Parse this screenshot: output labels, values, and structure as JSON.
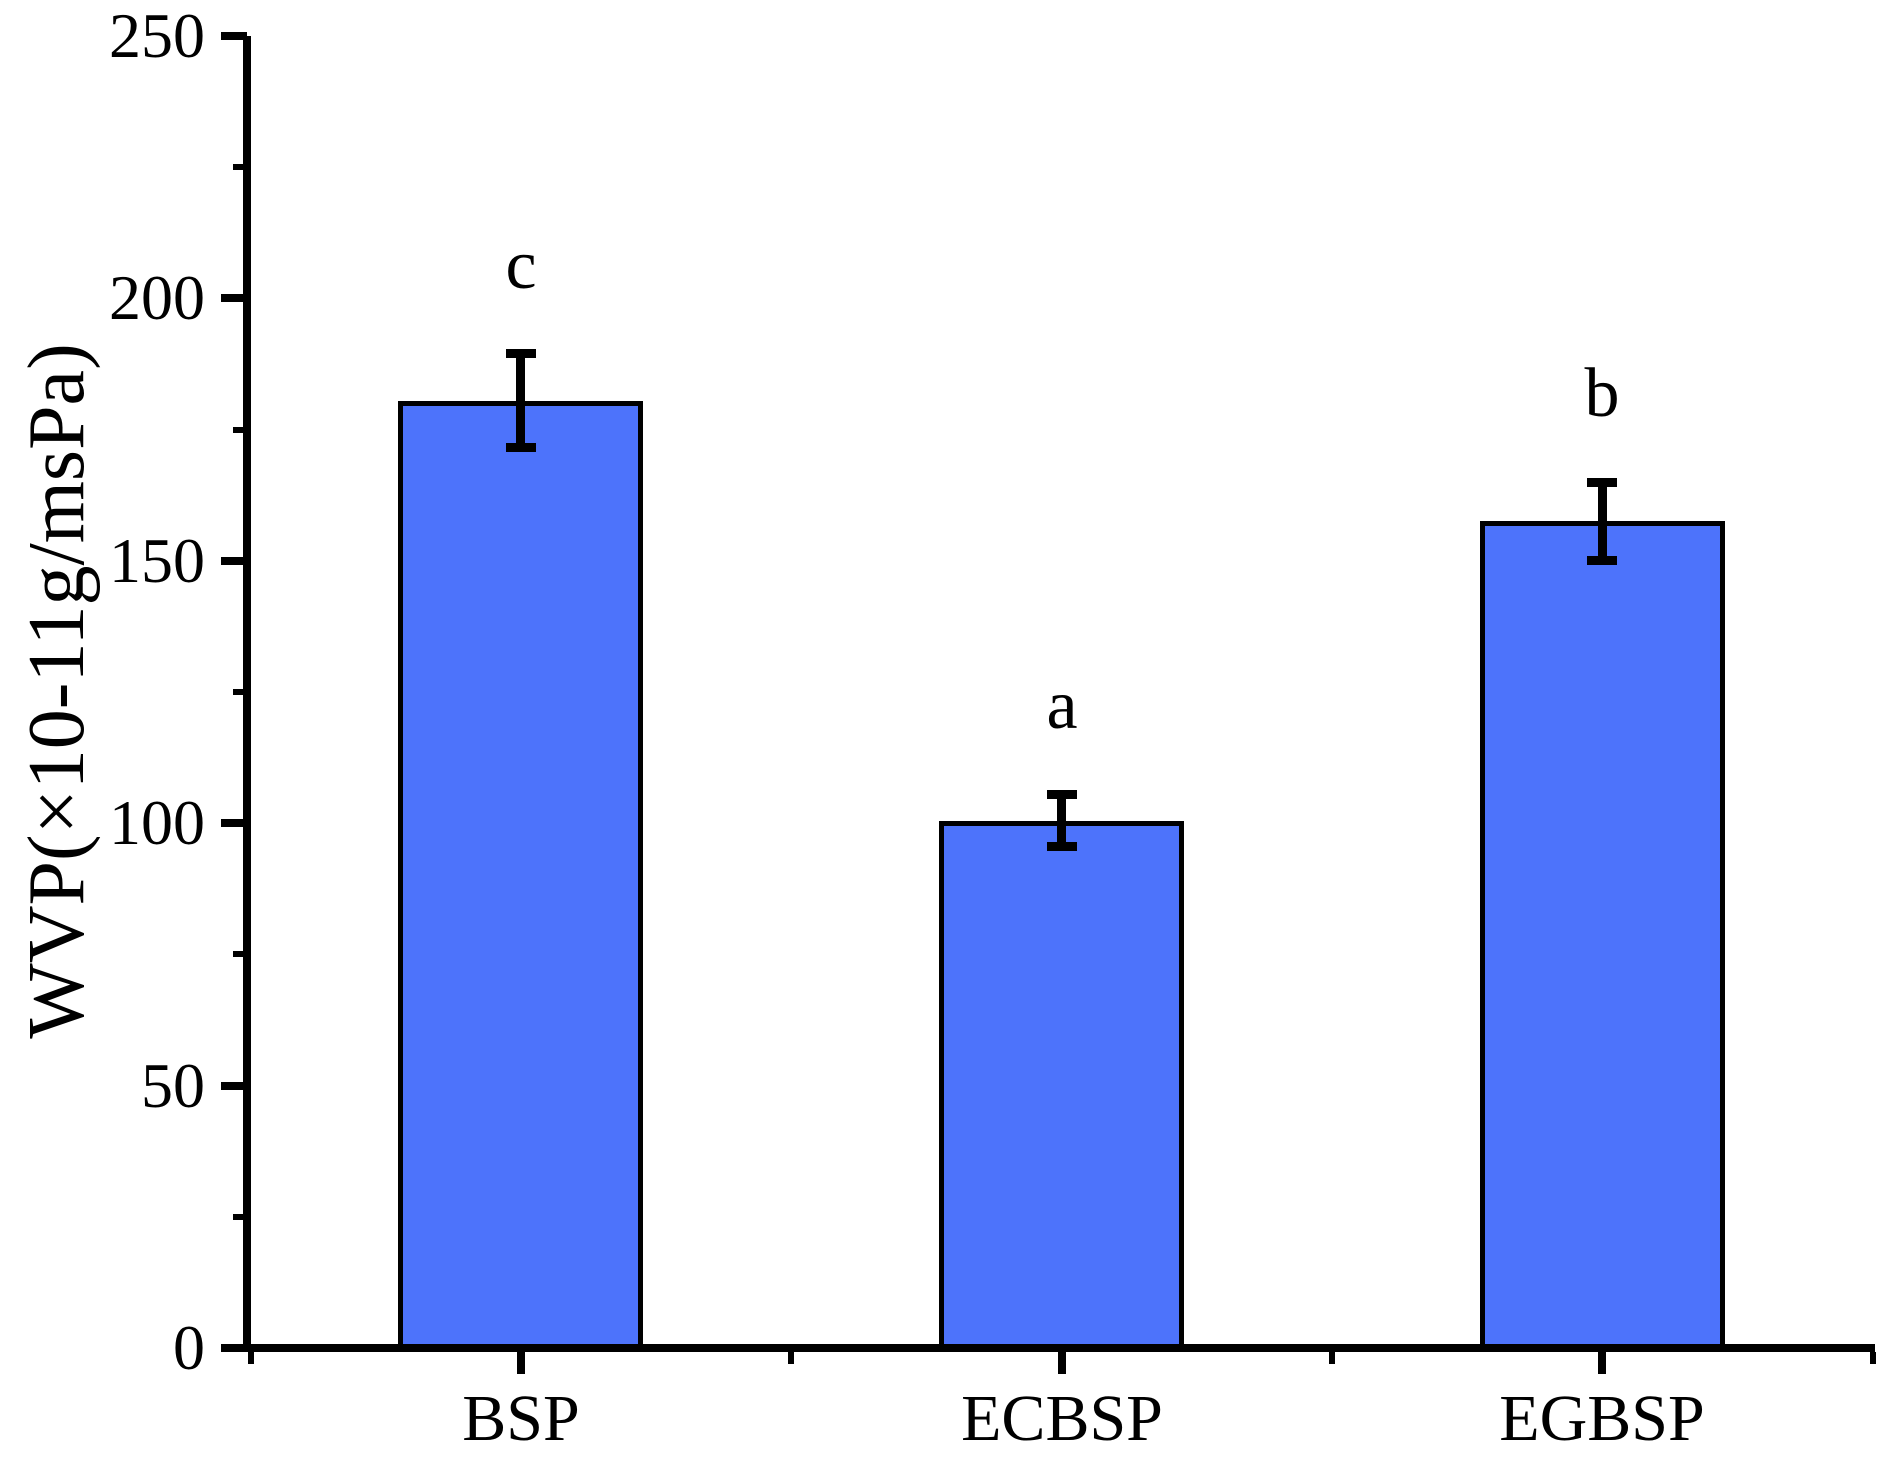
{
  "chart_data": {
    "type": "bar",
    "categories": [
      "BSP",
      "ECBSP",
      "EGBSP"
    ],
    "values": [
      180.5,
      100.5,
      157.5
    ],
    "errors": [
      9,
      5,
      7.5
    ],
    "sig_letters": [
      "c",
      "a",
      "b"
    ],
    "title": "",
    "xlabel": "",
    "ylabel": "WVP(×10-11g/msPa)",
    "ylim": [
      0,
      250
    ],
    "ytick_values": [
      0,
      50,
      100,
      150,
      200,
      250
    ],
    "yminor_tick_values": [
      25,
      75,
      125,
      175,
      225
    ],
    "grid": false,
    "legend": false,
    "bar_fill_color": "#4d73fb",
    "bar_border_color": "#000000",
    "axis_color": "#000000",
    "error_bar_color": "#000000",
    "background_color": "#ffffff"
  }
}
